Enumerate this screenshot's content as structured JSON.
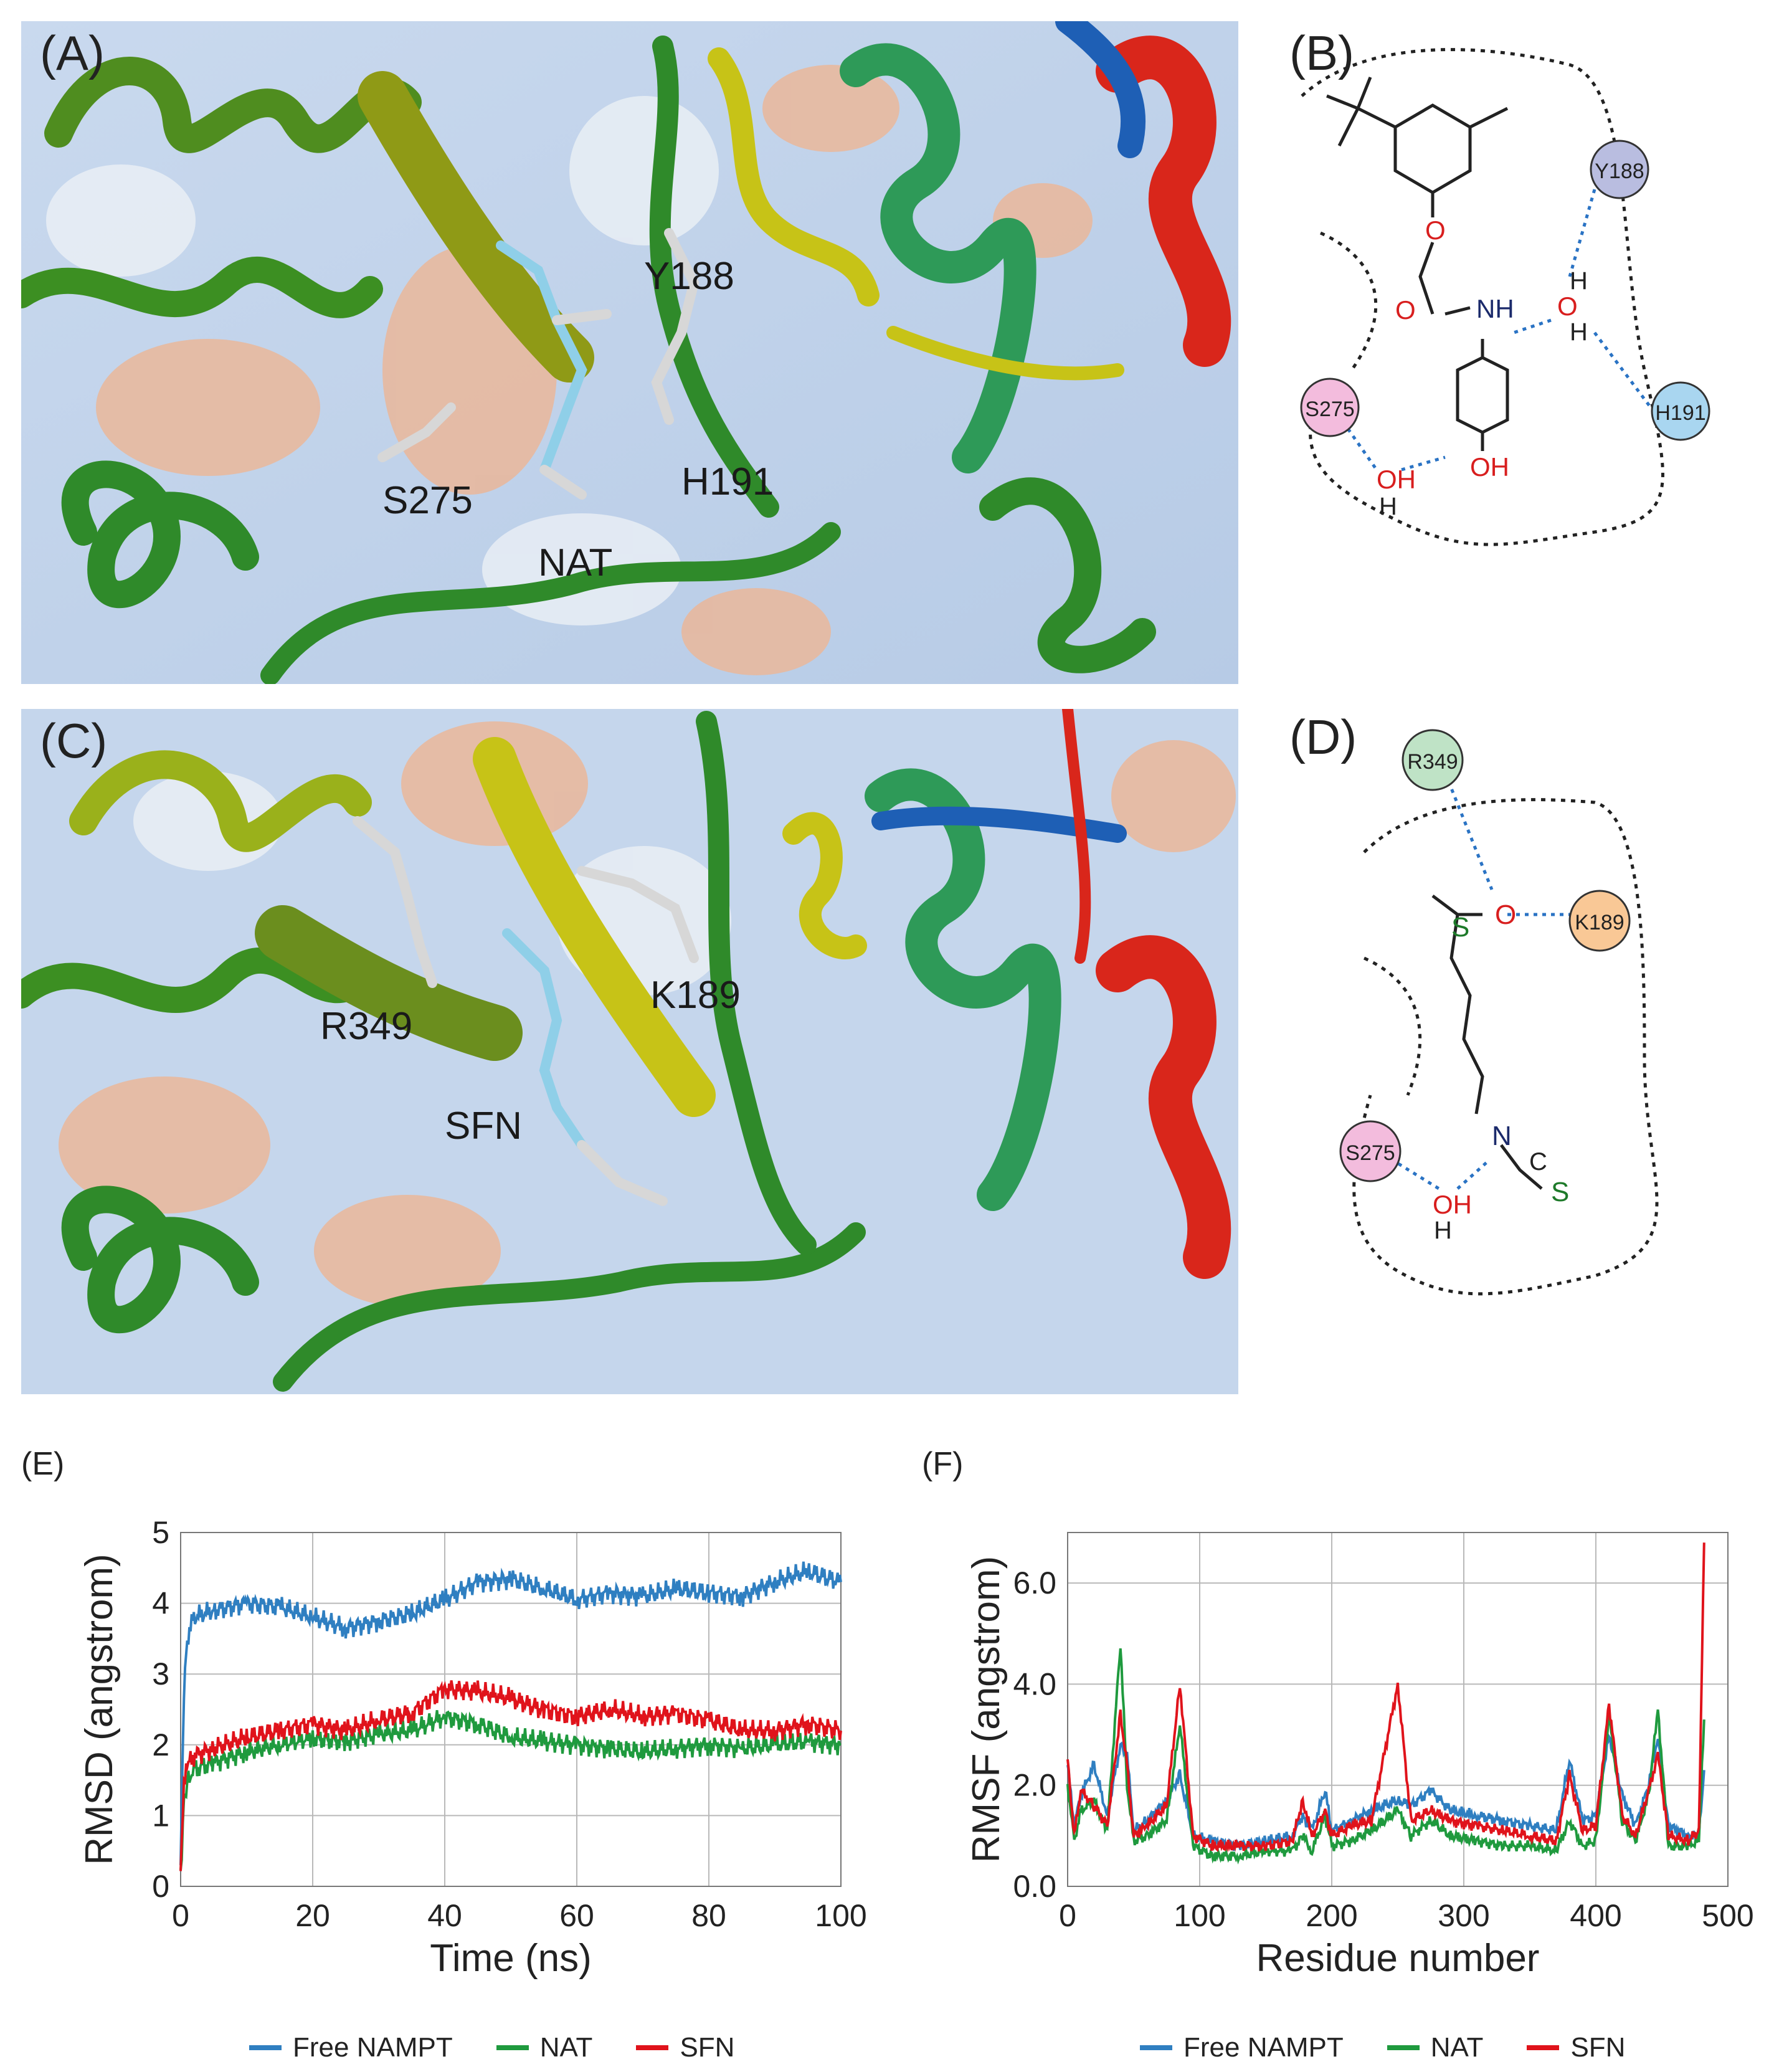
{
  "panels": {
    "A": {
      "label": "(A)",
      "residues": [
        "Y188",
        "S275",
        "H191",
        "NAT"
      ]
    },
    "B": {
      "label": "(B)",
      "residues": [
        "Y188",
        "S275",
        "H191"
      ],
      "atoms": [
        "O",
        "O",
        "NH",
        "H",
        "O",
        "H",
        "OH",
        "OH",
        "H"
      ]
    },
    "C": {
      "label": "(C)",
      "residues": [
        "R349",
        "K189",
        "SFN"
      ]
    },
    "D": {
      "label": "(D)",
      "residues": [
        "R349",
        "K189",
        "S275"
      ],
      "atoms": [
        "S",
        "O",
        "N",
        "C",
        "S",
        "OH",
        "H"
      ]
    }
  },
  "colors": {
    "free_nampt": "#2f7fc1",
    "nat": "#1f9a3e",
    "sfn": "#e0131b",
    "residue_Y188": "#b9bde0",
    "residue_H191": "#a9d6f0",
    "residue_S275": "#f3bcdd",
    "residue_R349": "#bfe3c6",
    "residue_K189": "#f9c896",
    "hbond": "#2a73c4"
  },
  "chart_data": [
    {
      "panel_label": "(E)",
      "type": "line",
      "xlabel": "Time (ns)",
      "ylabel": "RMSD (angstrom)",
      "xlim": [
        0,
        100
      ],
      "ylim": [
        0,
        5
      ],
      "xticks": [
        "0",
        "20",
        "40",
        "60",
        "80",
        "100"
      ],
      "yticks": [
        "0",
        "1",
        "2",
        "3",
        "4",
        "5"
      ],
      "grid": true,
      "legend_position": "bottom",
      "series": [
        {
          "name": "Free NAMPT",
          "x": [
            0,
            0.5,
            1,
            2,
            5,
            10,
            15,
            20,
            25,
            30,
            35,
            40,
            45,
            50,
            55,
            60,
            65,
            70,
            75,
            80,
            85,
            90,
            95,
            100
          ],
          "y": [
            0.3,
            2.8,
            3.5,
            3.8,
            3.9,
            4.0,
            3.95,
            3.8,
            3.65,
            3.75,
            3.85,
            4.05,
            4.3,
            4.35,
            4.2,
            4.05,
            4.15,
            4.1,
            4.2,
            4.15,
            4.1,
            4.3,
            4.45,
            4.3
          ]
        },
        {
          "name": "NAT",
          "x": [
            0,
            0.5,
            1,
            2,
            5,
            10,
            15,
            20,
            25,
            30,
            35,
            40,
            45,
            50,
            55,
            60,
            65,
            70,
            75,
            80,
            85,
            90,
            95,
            100
          ],
          "y": [
            0.2,
            1.2,
            1.5,
            1.65,
            1.75,
            1.9,
            2.0,
            2.1,
            2.05,
            2.15,
            2.2,
            2.4,
            2.3,
            2.1,
            2.05,
            2.0,
            1.95,
            1.9,
            1.95,
            2.0,
            1.95,
            2.0,
            2.05,
            2.0
          ]
        },
        {
          "name": "SFN",
          "x": [
            0,
            0.5,
            1,
            2,
            5,
            10,
            15,
            20,
            25,
            30,
            35,
            40,
            45,
            50,
            55,
            60,
            65,
            70,
            75,
            80,
            85,
            90,
            95,
            100
          ],
          "y": [
            0.2,
            1.4,
            1.7,
            1.85,
            1.95,
            2.1,
            2.2,
            2.3,
            2.2,
            2.35,
            2.45,
            2.8,
            2.75,
            2.65,
            2.5,
            2.4,
            2.5,
            2.4,
            2.45,
            2.35,
            2.2,
            2.2,
            2.3,
            2.2
          ]
        }
      ]
    },
    {
      "panel_label": "(F)",
      "type": "line",
      "xlabel": "Residue number",
      "ylabel": "RMSF (angstrom)",
      "xlim": [
        0,
        500
      ],
      "ylim": [
        0,
        7
      ],
      "xticks": [
        "0",
        "100",
        "200",
        "300",
        "400",
        "500"
      ],
      "yticks": [
        "0.0",
        "2.0",
        "4.0",
        "6.0"
      ],
      "grid": true,
      "legend_position": "bottom",
      "series": [
        {
          "name": "Free NAMPT",
          "x": [
            0,
            5,
            10,
            20,
            30,
            40,
            45,
            50,
            60,
            75,
            85,
            95,
            110,
            130,
            150,
            170,
            178,
            185,
            195,
            200,
            215,
            230,
            250,
            260,
            275,
            290,
            310,
            330,
            350,
            370,
            380,
            390,
            400,
            410,
            420,
            430,
            440,
            447,
            455,
            470,
            478,
            482
          ],
          "y": [
            2.4,
            1.2,
            1.8,
            2.4,
            1.4,
            2.8,
            2.6,
            1.1,
            1.3,
            1.7,
            2.2,
            1.0,
            0.9,
            0.8,
            0.9,
            1.0,
            1.4,
            1.1,
            1.9,
            1.1,
            1.3,
            1.5,
            1.7,
            1.6,
            1.9,
            1.5,
            1.4,
            1.3,
            1.2,
            1.1,
            2.5,
            1.3,
            1.4,
            3.0,
            1.8,
            1.2,
            2.0,
            3.0,
            1.2,
            1.0,
            1.0,
            2.3
          ]
        },
        {
          "name": "NAT",
          "x": [
            0,
            5,
            10,
            20,
            30,
            40,
            45,
            50,
            60,
            75,
            85,
            95,
            110,
            130,
            150,
            170,
            178,
            185,
            195,
            200,
            215,
            230,
            250,
            260,
            275,
            290,
            310,
            330,
            350,
            370,
            380,
            390,
            400,
            410,
            420,
            430,
            440,
            447,
            455,
            470,
            478,
            482
          ],
          "y": [
            2.0,
            0.9,
            1.5,
            1.7,
            1.1,
            4.8,
            2.0,
            0.9,
            1.0,
            1.3,
            3.2,
            0.8,
            0.6,
            0.6,
            0.7,
            0.7,
            1.0,
            0.7,
            1.4,
            0.8,
            0.9,
            1.1,
            1.5,
            1.0,
            1.3,
            1.0,
            0.9,
            0.8,
            0.8,
            0.7,
            1.3,
            0.8,
            0.9,
            3.4,
            1.3,
            0.9,
            1.8,
            3.5,
            0.8,
            0.8,
            0.9,
            3.3
          ]
        },
        {
          "name": "SFN",
          "x": [
            0,
            5,
            10,
            20,
            30,
            40,
            45,
            50,
            60,
            75,
            85,
            95,
            110,
            130,
            150,
            170,
            178,
            185,
            195,
            200,
            215,
            230,
            250,
            260,
            275,
            290,
            310,
            330,
            350,
            370,
            380,
            390,
            400,
            410,
            420,
            430,
            440,
            447,
            455,
            470,
            478,
            482
          ],
          "y": [
            2.5,
            1.0,
            1.9,
            1.6,
            1.2,
            3.4,
            2.4,
            1.0,
            1.2,
            1.6,
            4.0,
            1.0,
            0.8,
            0.8,
            0.8,
            0.9,
            1.7,
            1.0,
            1.5,
            1.0,
            1.2,
            1.3,
            4.0,
            1.3,
            1.5,
            1.3,
            1.2,
            1.1,
            1.0,
            0.9,
            2.2,
            1.1,
            1.2,
            3.6,
            1.4,
            1.0,
            1.9,
            2.6,
            1.0,
            0.9,
            1.1,
            6.8
          ]
        }
      ]
    }
  ]
}
